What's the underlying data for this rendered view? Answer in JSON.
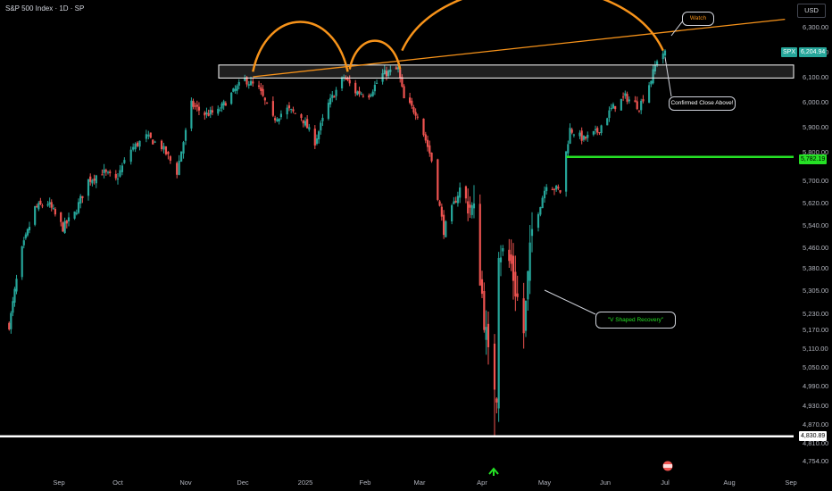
{
  "header": {
    "symbol_title": "S&P 500 Index · 1D · SP"
  },
  "currency_button": "USD",
  "annotations": {
    "watch": "Watch",
    "confirmed": "Confirmed Close Above!",
    "v_shape": "\"V Shaped Recovery\""
  },
  "colors": {
    "up": "#26a69a",
    "down": "#ef5350",
    "orange": "#f7931a",
    "green_level": "#25e025",
    "white": "#ffffff"
  },
  "price_tags": {
    "spx_label": "SPX",
    "spx_value": "6,204.94",
    "green_value": "5,782.19",
    "white_value": "4,830.89"
  },
  "chart_data": {
    "type": "candlestick",
    "title": "S&P 500 Index · 1D · SP",
    "y_ticks": [
      6300,
      6200,
      6100,
      6000,
      5900,
      5800,
      5700,
      5620,
      5540,
      5460,
      5380,
      5305,
      5230,
      5170,
      5110,
      5050,
      4990,
      4930,
      4870,
      4810,
      4754
    ],
    "y_tick_labels": [
      "6,300.00",
      "6,200.00",
      "6,100.00",
      "6,000.00",
      "5,900.00",
      "5,800.00",
      "5,700.00",
      "5,620.00",
      "5,540.00",
      "5,460.00",
      "5,380.00",
      "5,305.00",
      "5,230.00",
      "5,170.00",
      "5,110.00",
      "5,050.00",
      "4,990.00",
      "4,930.00",
      "4,870.00",
      "4,810.00",
      "4,754.00"
    ],
    "x_ticks": [
      "Sep",
      "Oct",
      "Nov",
      "Dec",
      "2025",
      "Feb",
      "Mar",
      "Apr",
      "May",
      "Jun",
      "Jul",
      "Aug",
      "Sep"
    ],
    "close_path": [
      [
        "2024-08-05",
        5186
      ],
      [
        "2024-08-12",
        5450
      ],
      [
        "2024-08-19",
        5600
      ],
      [
        "2024-08-26",
        5620
      ],
      [
        "2024-09-03",
        5530
      ],
      [
        "2024-09-09",
        5580
      ],
      [
        "2024-09-16",
        5700
      ],
      [
        "2024-09-23",
        5730
      ],
      [
        "2024-09-30",
        5700
      ],
      [
        "2024-10-07",
        5810
      ],
      [
        "2024-10-14",
        5860
      ],
      [
        "2024-10-21",
        5820
      ],
      [
        "2024-10-28",
        5730
      ],
      [
        "2024-11-04",
        5990
      ],
      [
        "2024-11-11",
        5950
      ],
      [
        "2024-11-18",
        5960
      ],
      [
        "2024-11-25",
        6030
      ],
      [
        "2024-12-02",
        6090
      ],
      [
        "2024-12-09",
        6050
      ],
      [
        "2024-12-16",
        5930
      ],
      [
        "2024-12-23",
        5970
      ],
      [
        "2024-12-30",
        5940
      ],
      [
        "2025-01-06",
        5840
      ],
      [
        "2025-01-13",
        5990
      ],
      [
        "2025-01-21",
        6100
      ],
      [
        "2025-01-27",
        6040
      ],
      [
        "2025-02-03",
        6030
      ],
      [
        "2025-02-10",
        6110
      ],
      [
        "2025-02-18",
        6130
      ],
      [
        "2025-02-21",
        6010
      ],
      [
        "2025-02-28",
        5950
      ],
      [
        "2025-03-07",
        5770
      ],
      [
        "2025-03-13",
        5520
      ],
      [
        "2025-03-21",
        5670
      ],
      [
        "2025-03-28",
        5580
      ],
      [
        "2025-04-04",
        5070
      ],
      [
        "2025-04-08",
        4980
      ],
      [
        "2025-04-09",
        5460
      ],
      [
        "2025-04-15",
        5390
      ],
      [
        "2025-04-21",
        5160
      ],
      [
        "2025-04-25",
        5520
      ],
      [
        "2025-05-02",
        5690
      ],
      [
        "2025-05-09",
        5660
      ],
      [
        "2025-05-14",
        5890
      ],
      [
        "2025-05-21",
        5850
      ],
      [
        "2025-05-28",
        5880
      ],
      [
        "2025-06-04",
        5970
      ],
      [
        "2025-06-11",
        6020
      ],
      [
        "2025-06-18",
        5980
      ],
      [
        "2025-06-24",
        6090
      ],
      [
        "2025-06-27",
        6170
      ],
      [
        "2025-07-01",
        6204.94
      ]
    ],
    "levels": [
      {
        "name": "resistance_zone",
        "low": 6095,
        "high": 6147
      },
      {
        "name": "green_support",
        "value": 5782.19,
        "from": "2025-05-12"
      },
      {
        "name": "white_support",
        "value": 4830.89
      }
    ],
    "trendline": [
      [
        "2024-12-06",
        6100
      ],
      [
        "2025-08-29",
        6330
      ]
    ],
    "arcs": [
      {
        "from": "2024-12-06",
        "to": "2025-01-23",
        "base": 6120
      },
      {
        "from": "2025-01-24",
        "to": "2025-02-19",
        "base": 6130
      },
      {
        "from": "2025-02-20",
        "to": "2025-06-30",
        "base": 6205
      }
    ],
    "last_price": 6204.94
  }
}
